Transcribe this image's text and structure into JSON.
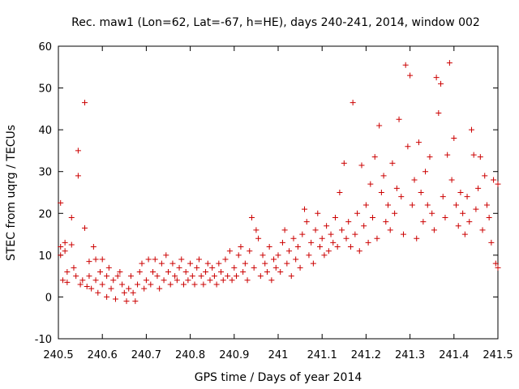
{
  "chart_data": {
    "type": "scatter",
    "title": "Rec. maw1 (Lon=62, Lat=-67, h=HE), days 240-241, 2014, window 002",
    "xlabel": "GPS time / Days of year 2014",
    "ylabel": "STEC from uqrg / TECUs",
    "xlim": [
      240.5,
      241.5
    ],
    "ylim": [
      -10,
      60
    ],
    "xticks": [
      240.5,
      240.6,
      240.7,
      240.8,
      240.9,
      241.0,
      241.1,
      241.2,
      241.3,
      241.4,
      241.5
    ],
    "xtick_labels": [
      "240.5",
      "240.6",
      "240.7",
      "240.8",
      "240.9",
      "241",
      "241.1",
      "241.2",
      "241.3",
      "241.4",
      "241.5"
    ],
    "yticks": [
      -10,
      0,
      10,
      20,
      30,
      40,
      50,
      60
    ],
    "ytick_labels": [
      "-10",
      "0",
      "10",
      "20",
      "30",
      "40",
      "50",
      "60"
    ],
    "marker": "+",
    "grid": false,
    "series": [
      {
        "name": "STEC",
        "color": "#cc0000",
        "points": [
          [
            240.505,
            22.5
          ],
          [
            240.505,
            12
          ],
          [
            240.505,
            10
          ],
          [
            240.51,
            4
          ],
          [
            240.515,
            11
          ],
          [
            240.515,
            13
          ],
          [
            240.52,
            6
          ],
          [
            240.52,
            3.5
          ],
          [
            240.53,
            19
          ],
          [
            240.53,
            12.5
          ],
          [
            240.535,
            7
          ],
          [
            240.54,
            5
          ],
          [
            240.545,
            35
          ],
          [
            240.545,
            29
          ],
          [
            240.55,
            3
          ],
          [
            240.555,
            4
          ],
          [
            240.56,
            46.5
          ],
          [
            240.56,
            16.5
          ],
          [
            240.565,
            2.5
          ],
          [
            240.57,
            8.5
          ],
          [
            240.57,
            5
          ],
          [
            240.575,
            2
          ],
          [
            240.58,
            12
          ],
          [
            240.585,
            9
          ],
          [
            240.585,
            4
          ],
          [
            240.59,
            1
          ],
          [
            240.595,
            6
          ],
          [
            240.6,
            9
          ],
          [
            240.6,
            3
          ],
          [
            240.61,
            0
          ],
          [
            240.61,
            5
          ],
          [
            240.615,
            7
          ],
          [
            240.62,
            2
          ],
          [
            240.625,
            4
          ],
          [
            240.63,
            -0.5
          ],
          [
            240.635,
            5
          ],
          [
            240.64,
            6
          ],
          [
            240.645,
            3
          ],
          [
            240.65,
            1
          ],
          [
            240.655,
            -1
          ],
          [
            240.66,
            2
          ],
          [
            240.665,
            5
          ],
          [
            240.67,
            1
          ],
          [
            240.675,
            -1
          ],
          [
            240.68,
            3
          ],
          [
            240.685,
            6
          ],
          [
            240.69,
            8
          ],
          [
            240.695,
            2
          ],
          [
            240.7,
            4
          ],
          [
            240.705,
            9
          ],
          [
            240.71,
            3
          ],
          [
            240.715,
            6
          ],
          [
            240.72,
            9
          ],
          [
            240.725,
            5
          ],
          [
            240.73,
            2
          ],
          [
            240.735,
            8
          ],
          [
            240.74,
            4
          ],
          [
            240.745,
            10
          ],
          [
            240.75,
            6
          ],
          [
            240.755,
            3
          ],
          [
            240.76,
            8
          ],
          [
            240.765,
            5
          ],
          [
            240.77,
            4
          ],
          [
            240.775,
            7
          ],
          [
            240.78,
            9
          ],
          [
            240.785,
            3
          ],
          [
            240.79,
            6
          ],
          [
            240.795,
            4
          ],
          [
            240.8,
            8
          ],
          [
            240.805,
            5
          ],
          [
            240.81,
            3
          ],
          [
            240.815,
            7
          ],
          [
            240.82,
            9
          ],
          [
            240.825,
            5
          ],
          [
            240.83,
            3
          ],
          [
            240.835,
            6
          ],
          [
            240.84,
            8
          ],
          [
            240.845,
            4
          ],
          [
            240.85,
            7
          ],
          [
            240.855,
            5
          ],
          [
            240.86,
            3
          ],
          [
            240.865,
            8
          ],
          [
            240.87,
            6
          ],
          [
            240.875,
            4
          ],
          [
            240.88,
            9
          ],
          [
            240.885,
            5
          ],
          [
            240.89,
            11
          ],
          [
            240.895,
            4
          ],
          [
            240.9,
            7
          ],
          [
            240.905,
            5
          ],
          [
            240.91,
            10
          ],
          [
            240.915,
            12
          ],
          [
            240.92,
            6
          ],
          [
            240.925,
            8
          ],
          [
            240.93,
            4
          ],
          [
            240.935,
            11
          ],
          [
            240.94,
            19
          ],
          [
            240.945,
            7
          ],
          [
            240.95,
            16
          ],
          [
            240.955,
            14
          ],
          [
            240.96,
            5
          ],
          [
            240.965,
            10
          ],
          [
            240.97,
            8
          ],
          [
            240.975,
            6
          ],
          [
            240.98,
            12
          ],
          [
            240.985,
            4
          ],
          [
            240.99,
            9
          ],
          [
            240.995,
            7
          ],
          [
            241.0,
            10
          ],
          [
            241.005,
            6
          ],
          [
            241.01,
            13
          ],
          [
            241.015,
            16
          ],
          [
            241.02,
            8
          ],
          [
            241.025,
            11
          ],
          [
            241.03,
            5
          ],
          [
            241.035,
            14
          ],
          [
            241.04,
            9
          ],
          [
            241.045,
            12
          ],
          [
            241.05,
            7
          ],
          [
            241.055,
            15
          ],
          [
            241.06,
            21
          ],
          [
            241.065,
            18
          ],
          [
            241.07,
            10
          ],
          [
            241.075,
            13
          ],
          [
            241.08,
            8
          ],
          [
            241.085,
            16
          ],
          [
            241.09,
            20
          ],
          [
            241.095,
            12
          ],
          [
            241.1,
            14
          ],
          [
            241.105,
            10
          ],
          [
            241.11,
            17
          ],
          [
            241.115,
            11
          ],
          [
            241.12,
            15
          ],
          [
            241.125,
            13
          ],
          [
            241.13,
            19
          ],
          [
            241.135,
            12
          ],
          [
            241.14,
            25
          ],
          [
            241.145,
            16
          ],
          [
            241.15,
            32
          ],
          [
            241.155,
            14
          ],
          [
            241.16,
            18
          ],
          [
            241.165,
            12
          ],
          [
            241.17,
            46.5
          ],
          [
            241.175,
            15
          ],
          [
            241.18,
            20
          ],
          [
            241.185,
            11
          ],
          [
            241.19,
            31.5
          ],
          [
            241.195,
            17
          ],
          [
            241.2,
            22
          ],
          [
            241.205,
            13
          ],
          [
            241.21,
            27
          ],
          [
            241.215,
            19
          ],
          [
            241.22,
            33.5
          ],
          [
            241.225,
            14
          ],
          [
            241.23,
            41
          ],
          [
            241.235,
            25
          ],
          [
            241.24,
            29
          ],
          [
            241.245,
            18
          ],
          [
            241.25,
            22
          ],
          [
            241.255,
            16
          ],
          [
            241.26,
            32
          ],
          [
            241.265,
            20
          ],
          [
            241.27,
            26
          ],
          [
            241.275,
            42.5
          ],
          [
            241.28,
            24
          ],
          [
            241.285,
            15
          ],
          [
            241.29,
            55.5
          ],
          [
            241.295,
            36
          ],
          [
            241.3,
            53
          ],
          [
            241.305,
            22
          ],
          [
            241.31,
            28
          ],
          [
            241.315,
            14
          ],
          [
            241.32,
            37
          ],
          [
            241.325,
            25
          ],
          [
            241.33,
            18
          ],
          [
            241.335,
            30
          ],
          [
            241.34,
            22
          ],
          [
            241.345,
            33.5
          ],
          [
            241.35,
            20
          ],
          [
            241.355,
            16
          ],
          [
            241.36,
            52.5
          ],
          [
            241.365,
            44
          ],
          [
            241.37,
            51
          ],
          [
            241.375,
            24
          ],
          [
            241.38,
            19
          ],
          [
            241.385,
            34
          ],
          [
            241.39,
            56
          ],
          [
            241.395,
            28
          ],
          [
            241.4,
            38
          ],
          [
            241.405,
            22
          ],
          [
            241.41,
            17
          ],
          [
            241.415,
            25
          ],
          [
            241.42,
            20
          ],
          [
            241.425,
            15
          ],
          [
            241.43,
            24
          ],
          [
            241.435,
            18
          ],
          [
            241.44,
            40
          ],
          [
            241.445,
            34
          ],
          [
            241.45,
            21
          ],
          [
            241.455,
            26
          ],
          [
            241.46,
            33.5
          ],
          [
            241.465,
            16
          ],
          [
            241.47,
            29
          ],
          [
            241.475,
            22
          ],
          [
            241.48,
            19
          ],
          [
            241.485,
            13
          ],
          [
            241.49,
            28
          ],
          [
            241.495,
            8
          ],
          [
            241.5,
            27
          ],
          [
            241.5,
            7
          ]
        ]
      }
    ]
  }
}
